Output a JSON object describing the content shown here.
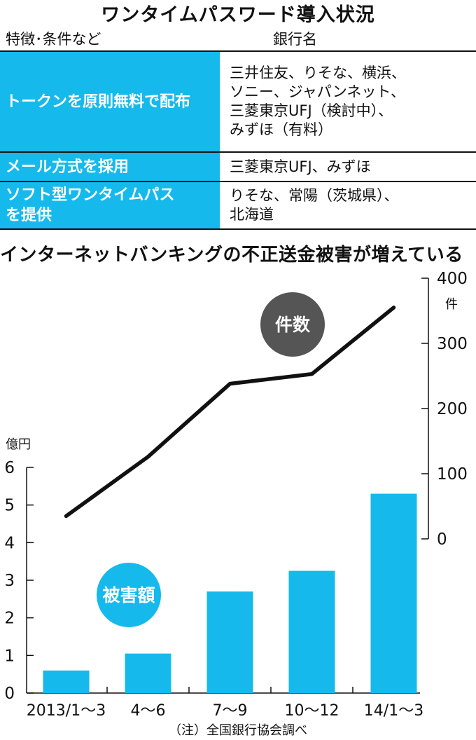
{
  "table": {
    "title": "ワンタイムパスワード導入状況",
    "col_feature": "特徴･条件など",
    "col_banks": "銀行名",
    "rows": [
      {
        "feature": [
          "トークンを原則無料で配布"
        ],
        "banks": [
          "三井住友、りそな、横浜、",
          "ソニー、ジャパンネット、",
          "三菱東京UFJ（検討中）、",
          "みずほ（有料）"
        ]
      },
      {
        "feature": [
          "メール方式を採用"
        ],
        "banks": [
          "三菱東京UFJ、みずほ"
        ]
      },
      {
        "feature": [
          "ソフト型ワンタイムパス",
          "を提供"
        ],
        "banks": [
          "りそな、常陽（茨城県）、",
          "北海道"
        ]
      }
    ]
  },
  "chart_title": "インターネットバンキングの不正送金被害が増えている",
  "chart_data": {
    "type": "bar+line",
    "title": "インターネットバンキングの不正送金被害が増えている",
    "categories": [
      "2013/1～3",
      "4～6",
      "7～9",
      "10～12",
      "14/1～3"
    ],
    "bar_series": {
      "name": "被害額",
      "unit": "億円",
      "values": [
        0.6,
        1.05,
        2.7,
        3.25,
        5.3
      ],
      "ylim": [
        0,
        6
      ],
      "ticks": [
        0,
        1,
        2,
        3,
        4,
        5,
        6
      ],
      "axis": "left",
      "color": "#16b9ec"
    },
    "line_series": {
      "name": "件数",
      "unit": "件",
      "values": [
        35,
        126,
        238,
        253,
        355
      ],
      "ylim": [
        0,
        400
      ],
      "ticks": [
        0,
        100,
        200,
        300,
        400
      ],
      "axis": "right",
      "color": "#111111"
    },
    "legend_bar_label": "被害額",
    "legend_line_label": "件数",
    "left_unit_label": "億円",
    "right_unit_label": "件",
    "grid": false,
    "source_note": "（注）全国銀行協会調べ"
  }
}
